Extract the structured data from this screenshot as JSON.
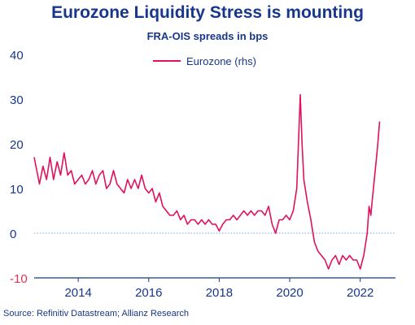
{
  "title": "Eurozone Liquidity Stress is mounting",
  "subtitle": "FRA-OIS spreads in bps",
  "source": "Source: Refinitiv Datastream; Allianz Research",
  "colors": {
    "series": "#e0115f",
    "text": "#17378a",
    "negative": "#e2334d",
    "zero_line": "#7aa7d6"
  },
  "chart_data": {
    "type": "line",
    "legend_position": "top-center",
    "grid": false,
    "ylim": [
      -10,
      40
    ],
    "yticks": [
      -10,
      0,
      10,
      20,
      30,
      40
    ],
    "xlim": [
      2012.75,
      2023.0
    ],
    "xticks": [
      2014,
      2016,
      2018,
      2020,
      2022
    ],
    "series": [
      {
        "name": "Eurozone (rhs)",
        "points": [
          [
            2012.75,
            17
          ],
          [
            2012.9,
            11
          ],
          [
            2013.0,
            15
          ],
          [
            2013.1,
            12
          ],
          [
            2013.2,
            17
          ],
          [
            2013.3,
            12
          ],
          [
            2013.4,
            16
          ],
          [
            2013.5,
            13
          ],
          [
            2013.6,
            18
          ],
          [
            2013.7,
            13
          ],
          [
            2013.8,
            14
          ],
          [
            2013.9,
            11
          ],
          [
            2014.0,
            12
          ],
          [
            2014.1,
            13
          ],
          [
            2014.2,
            11
          ],
          [
            2014.3,
            12
          ],
          [
            2014.4,
            14
          ],
          [
            2014.5,
            11
          ],
          [
            2014.6,
            13
          ],
          [
            2014.7,
            14
          ],
          [
            2014.8,
            10
          ],
          [
            2014.9,
            11
          ],
          [
            2015.0,
            14
          ],
          [
            2015.1,
            11
          ],
          [
            2015.2,
            10
          ],
          [
            2015.3,
            9
          ],
          [
            2015.4,
            12
          ],
          [
            2015.5,
            10
          ],
          [
            2015.6,
            12
          ],
          [
            2015.7,
            10
          ],
          [
            2015.8,
            13
          ],
          [
            2015.9,
            10
          ],
          [
            2016.0,
            9
          ],
          [
            2016.1,
            10
          ],
          [
            2016.2,
            7
          ],
          [
            2016.3,
            9
          ],
          [
            2016.4,
            6
          ],
          [
            2016.5,
            5
          ],
          [
            2016.6,
            4
          ],
          [
            2016.7,
            4
          ],
          [
            2016.8,
            5
          ],
          [
            2016.9,
            3
          ],
          [
            2017.0,
            4
          ],
          [
            2017.1,
            2
          ],
          [
            2017.2,
            3
          ],
          [
            2017.3,
            3
          ],
          [
            2017.4,
            2
          ],
          [
            2017.5,
            3
          ],
          [
            2017.6,
            2
          ],
          [
            2017.7,
            3
          ],
          [
            2017.8,
            2
          ],
          [
            2017.9,
            2
          ],
          [
            2018.0,
            0.5
          ],
          [
            2018.1,
            2
          ],
          [
            2018.2,
            3
          ],
          [
            2018.3,
            3
          ],
          [
            2018.4,
            4
          ],
          [
            2018.5,
            3
          ],
          [
            2018.6,
            4
          ],
          [
            2018.7,
            5
          ],
          [
            2018.8,
            4
          ],
          [
            2018.9,
            5
          ],
          [
            2019.0,
            4
          ],
          [
            2019.1,
            5
          ],
          [
            2019.2,
            5
          ],
          [
            2019.3,
            4
          ],
          [
            2019.4,
            6
          ],
          [
            2019.5,
            2
          ],
          [
            2019.6,
            0
          ],
          [
            2019.7,
            3
          ],
          [
            2019.8,
            3
          ],
          [
            2019.9,
            4
          ],
          [
            2020.0,
            3
          ],
          [
            2020.1,
            5
          ],
          [
            2020.2,
            10
          ],
          [
            2020.3,
            31
          ],
          [
            2020.35,
            20
          ],
          [
            2020.4,
            12
          ],
          [
            2020.5,
            7
          ],
          [
            2020.6,
            3
          ],
          [
            2020.7,
            -2
          ],
          [
            2020.8,
            -4
          ],
          [
            2020.9,
            -5
          ],
          [
            2021.0,
            -6
          ],
          [
            2021.1,
            -8
          ],
          [
            2021.2,
            -6
          ],
          [
            2021.3,
            -5
          ],
          [
            2021.4,
            -7
          ],
          [
            2021.5,
            -5
          ],
          [
            2021.6,
            -6
          ],
          [
            2021.7,
            -5
          ],
          [
            2021.8,
            -6
          ],
          [
            2021.9,
            -6
          ],
          [
            2022.0,
            -8
          ],
          [
            2022.1,
            -5
          ],
          [
            2022.2,
            0
          ],
          [
            2022.25,
            6
          ],
          [
            2022.3,
            4
          ],
          [
            2022.35,
            8
          ],
          [
            2022.4,
            12
          ],
          [
            2022.45,
            16
          ],
          [
            2022.5,
            20
          ],
          [
            2022.55,
            25
          ]
        ]
      }
    ]
  }
}
